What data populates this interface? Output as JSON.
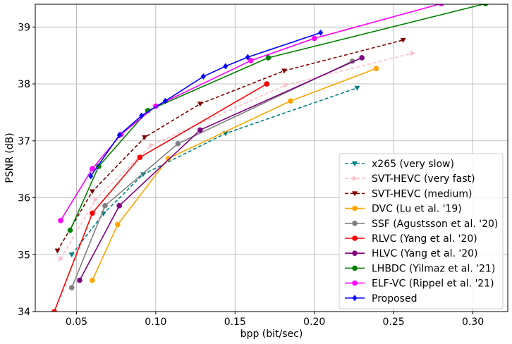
{
  "chart_data": {
    "type": "line",
    "title": "",
    "xlabel": "bpp (bit/sec)",
    "ylabel": "PSNR (dB)",
    "xlim": [
      0.024,
      0.322
    ],
    "ylim": [
      34.0,
      39.4
    ],
    "xticks": [
      "0.05",
      "0.10",
      "0.15",
      "0.20",
      "0.25",
      "0.30"
    ],
    "xtick_values": [
      0.05,
      0.1,
      0.15,
      0.2,
      0.25,
      0.3
    ],
    "yticks": [
      "34",
      "35",
      "36",
      "37",
      "38",
      "39"
    ],
    "ytick_values": [
      34,
      35,
      36,
      37,
      38,
      39
    ],
    "grid": true,
    "legend_position": "bottom-right",
    "series": [
      {
        "name": "x265 (very slow)",
        "color": "#008080",
        "dash": "dashed",
        "marker": "triangle-down",
        "x": [
          0.047,
          0.067,
          0.092,
          0.144,
          0.227
        ],
        "y": [
          35.0,
          35.72,
          36.41,
          37.13,
          37.93
        ]
      },
      {
        "name": "SVT-HEVC (very fast)",
        "color": "#ffc0cb",
        "dash": "dashed",
        "marker": "triangle-right",
        "x": [
          0.04,
          0.062,
          0.097,
          0.182,
          0.262
        ],
        "y": [
          34.93,
          35.97,
          36.92,
          37.98,
          38.54
        ]
      },
      {
        "name": "SVT-HEVC (medium)",
        "color": "#800000",
        "dash": "dashed",
        "marker": "triangle-down",
        "x": [
          0.038,
          0.06,
          0.093,
          0.128,
          0.181,
          0.256
        ],
        "y": [
          35.07,
          36.11,
          37.06,
          37.65,
          38.23,
          38.77
        ]
      },
      {
        "name": "DVC (Lu et al. '19)",
        "color": "#ffa500",
        "dash": "solid",
        "marker": "circle",
        "x": [
          0.06,
          0.076,
          0.108,
          0.185,
          0.239
        ],
        "y": [
          34.55,
          35.53,
          36.69,
          37.7,
          38.27
        ]
      },
      {
        "name": "SSF (Agustsson et al. '20)",
        "color": "#808080",
        "dash": "solid",
        "marker": "circle",
        "x": [
          0.047,
          0.068,
          0.114,
          0.224
        ],
        "y": [
          34.42,
          35.86,
          36.95,
          38.4
        ]
      },
      {
        "name": "RLVC (Yang et al. '20)",
        "color": "#ff0000",
        "dash": "solid",
        "marker": "circle",
        "x": [
          0.036,
          0.06,
          0.09,
          0.17
        ],
        "y": [
          34.0,
          35.73,
          36.71,
          38.0
        ]
      },
      {
        "name": "HLVC (Yang et al. '20)",
        "color": "#800080",
        "dash": "solid",
        "marker": "circle",
        "x": [
          0.052,
          0.077,
          0.128,
          0.23
        ],
        "y": [
          34.55,
          35.86,
          37.19,
          38.46
        ]
      },
      {
        "name": "LHBDC (Yilmaz et al. '21)",
        "color": "#008000",
        "dash": "solid",
        "marker": "circle",
        "x": [
          0.046,
          0.064,
          0.095,
          0.171,
          0.308
        ],
        "y": [
          35.43,
          36.55,
          37.53,
          38.46,
          39.41
        ]
      },
      {
        "name": "ELF-VC (Rippel et al. '21)",
        "color": "#ff00ff",
        "dash": "solid",
        "marker": "circle",
        "x": [
          0.04,
          0.06,
          0.078,
          0.1,
          0.16,
          0.2,
          0.28
        ],
        "y": [
          35.6,
          36.51,
          37.11,
          37.61,
          38.41,
          38.8,
          39.41
        ]
      },
      {
        "name": "Proposed",
        "color": "#0000ff",
        "dash": "solid",
        "marker": "diamond",
        "x": [
          0.059,
          0.077,
          0.091,
          0.106,
          0.13,
          0.144,
          0.158,
          0.204
        ],
        "y": [
          36.38,
          37.1,
          37.44,
          37.7,
          38.13,
          38.31,
          38.47,
          38.9
        ]
      }
    ]
  }
}
